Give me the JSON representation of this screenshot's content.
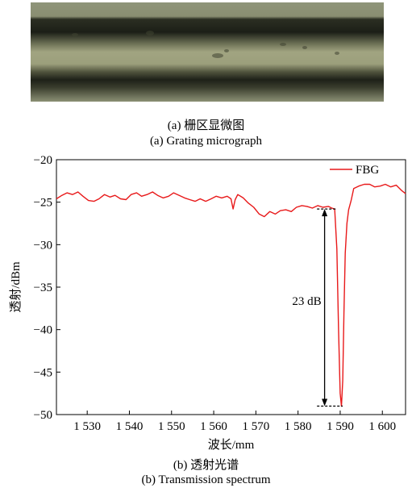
{
  "figure_a": {
    "caption_cn": "(a) 栅区显微图",
    "caption_en": "(a) Grating micrograph"
  },
  "figure_b": {
    "caption_cn": "(b) 透射光谱",
    "caption_en": "(b) Transmission spectrum"
  },
  "colors": {
    "series": "#e8191a",
    "axis": "#000000",
    "fiber_core": "#9a9a78",
    "fiber_edge": "#1f2118"
  },
  "chart_data": {
    "type": "line",
    "title": "",
    "xlabel": "波长/mm",
    "ylabel": "透射/dBm",
    "xlim": [
      1522.7,
      1605.5
    ],
    "ylim": [
      -50,
      -20
    ],
    "xticks": [
      1530,
      1540,
      1550,
      1560,
      1570,
      1580,
      1590,
      1600
    ],
    "xtick_labels": [
      "1 530",
      "1 540",
      "1 550",
      "1 560",
      "1 570",
      "1 580",
      "1 590",
      "1 600"
    ],
    "yticks": [
      -20,
      -25,
      -30,
      -35,
      -40,
      -45,
      -50
    ],
    "ytick_labels": [
      "−20",
      "−25",
      "−30",
      "−35",
      "−40",
      "−45",
      "−50"
    ],
    "grid": false,
    "legend": "top-right",
    "series": [
      {
        "name": "FBG",
        "x": [
          1522.7,
          1524,
          1525.2,
          1526.5,
          1527.8,
          1529,
          1530.3,
          1531.6,
          1532.8,
          1534.1,
          1535.4,
          1536.6,
          1537.9,
          1539.2,
          1540.4,
          1541.7,
          1542.9,
          1544.2,
          1545.5,
          1546.7,
          1548,
          1549.3,
          1550.5,
          1551.8,
          1553.1,
          1554.3,
          1555.6,
          1556.8,
          1558.1,
          1559.4,
          1560.6,
          1561.9,
          1563.2,
          1564.1,
          1564.6,
          1565.1,
          1565.7,
          1567,
          1568.2,
          1569.5,
          1570.8,
          1572,
          1573.3,
          1574.6,
          1575.8,
          1577.1,
          1578.4,
          1579.6,
          1580.9,
          1582.1,
          1583.4,
          1584.7,
          1585.9,
          1587.2,
          1588,
          1588.7,
          1589.2,
          1589.6,
          1590,
          1590.3,
          1590.6,
          1590.9,
          1591.2,
          1591.6,
          1592,
          1592.6,
          1593.2,
          1594.4,
          1595.7,
          1597,
          1598.2,
          1599.5,
          1600.7,
          1602,
          1603.3,
          1604.5,
          1605.5
        ],
        "y": [
          -24.6,
          -24.2,
          -23.9,
          -24.1,
          -23.8,
          -24.3,
          -24.8,
          -24.9,
          -24.6,
          -24.1,
          -24.4,
          -24.2,
          -24.6,
          -24.7,
          -24.1,
          -23.9,
          -24.3,
          -24.1,
          -23.8,
          -24.2,
          -24.5,
          -24.3,
          -23.9,
          -24.2,
          -24.5,
          -24.7,
          -24.9,
          -24.6,
          -24.9,
          -24.6,
          -24.3,
          -24.5,
          -24.3,
          -24.6,
          -25.8,
          -24.7,
          -24.1,
          -24.5,
          -25.1,
          -25.6,
          -26.4,
          -26.7,
          -26.1,
          -26.4,
          -26.0,
          -25.9,
          -26.1,
          -25.6,
          -25.4,
          -25.5,
          -25.7,
          -25.4,
          -25.6,
          -25.5,
          -25.7,
          -25.8,
          -30.5,
          -40,
          -47.5,
          -49,
          -46,
          -38,
          -31,
          -27.5,
          -25.9,
          -24.8,
          -23.4,
          -23.1,
          -22.9,
          -22.9,
          -23.2,
          -23.1,
          -22.9,
          -23.2,
          -23.0,
          -23.6,
          -24.0
        ]
      }
    ],
    "annotations": [
      {
        "text": "23 dB",
        "from_y": -25.8,
        "to_y": -49
      }
    ]
  }
}
